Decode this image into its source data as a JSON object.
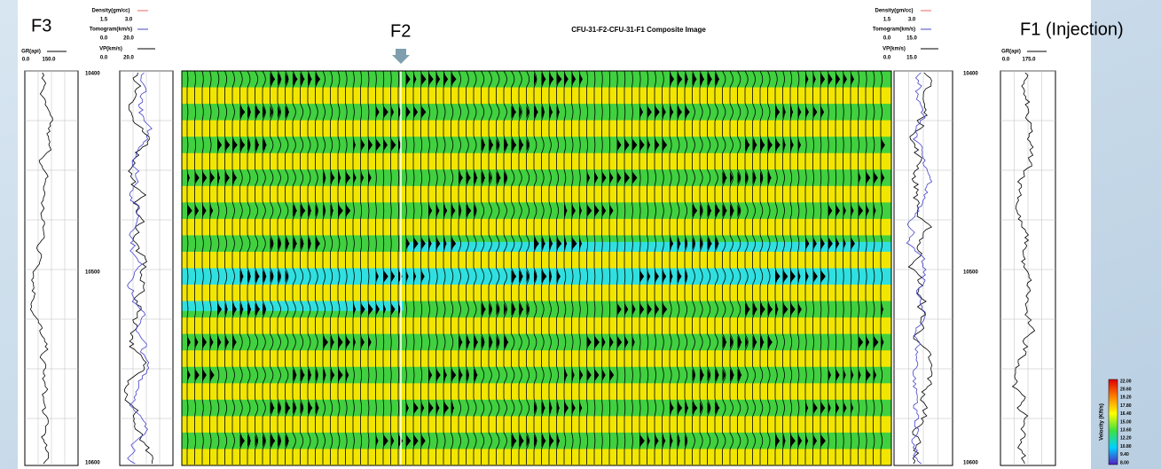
{
  "labels": {
    "left_well": "F3",
    "middle_well": "F2",
    "right_well": "F1 (Injection)"
  },
  "title": "CFU-31-F2-CFU-31-F1 Composite Image",
  "left_header": {
    "gr": {
      "name": "GR(api)",
      "min": "0.0",
      "max": "150.0"
    },
    "density": {
      "name": "Density(gm/cc)",
      "min": "1.5",
      "max": "3.0"
    },
    "tomogram": {
      "name": "Tomogram(km/s)",
      "min": "0.0",
      "max": "20.0"
    },
    "vp": {
      "name": "VP(km/s)",
      "min": "0.0",
      "max": "20.0"
    }
  },
  "right_header": {
    "gr": {
      "name": "GR(api)",
      "min": "0.0",
      "max": "175.0"
    },
    "density": {
      "name": "Density(gm/cc)",
      "min": "1.5",
      "max": "3.0"
    },
    "tomogram": {
      "name": "Tomogram(km/s)",
      "min": "0.0",
      "max": "15.0"
    },
    "vp": {
      "name": "VP(km/s)",
      "min": "0.0",
      "max": "15.0"
    }
  },
  "left_depths": [
    "10400",
    "10500",
    "10600"
  ],
  "right_depths": [
    "10400",
    "10500",
    "10600"
  ],
  "colorbar": {
    "title": "Velocity (Kft/s)",
    "labels": [
      "22.00",
      "20.60",
      "19.20",
      "17.80",
      "16.40",
      "15.00",
      "13.60",
      "12.20",
      "10.80",
      "9.40",
      "8.00"
    ]
  }
}
